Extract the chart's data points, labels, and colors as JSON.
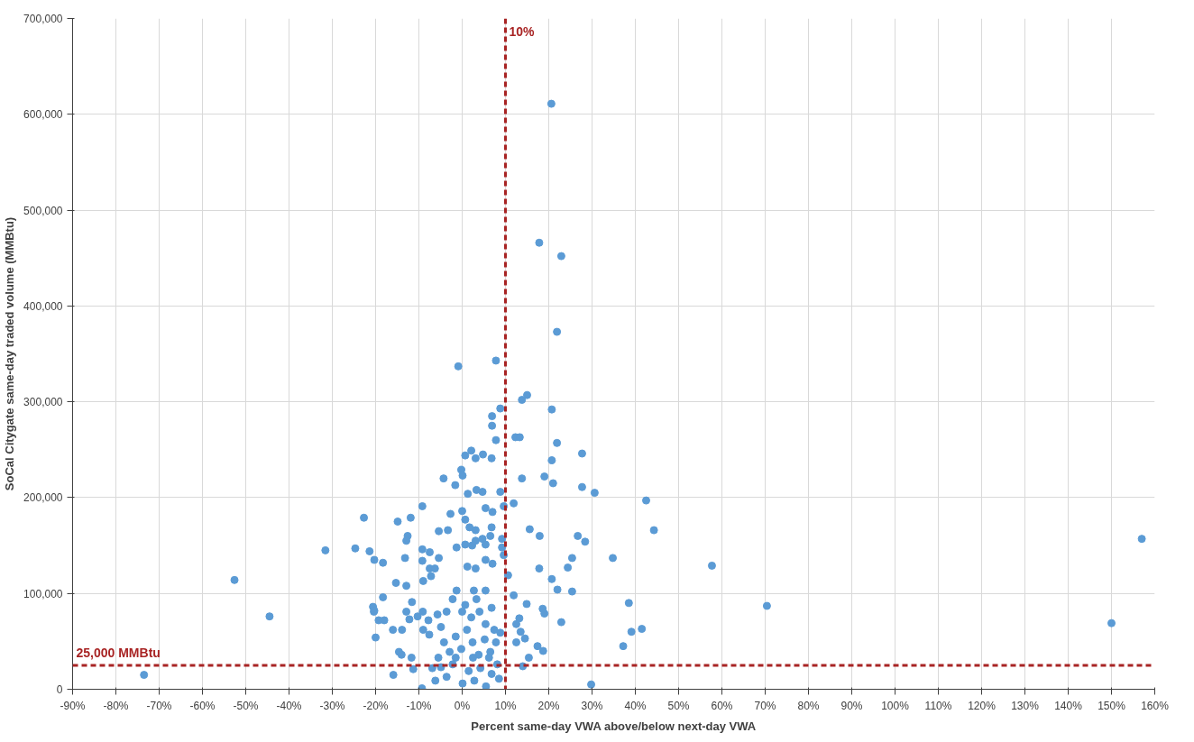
{
  "chart_data": {
    "type": "scatter",
    "xlabel": "Percent same-day VWA above/below next-day VWA",
    "ylabel": "SoCal Citygate same-day traded volume (MMBtu)",
    "xlim": [
      -90,
      160
    ],
    "xticks": [
      {
        "value": -90,
        "label": "-90%"
      },
      {
        "value": -80,
        "label": "-80%"
      },
      {
        "value": -70,
        "label": "-70%"
      },
      {
        "value": -60,
        "label": "-60%"
      },
      {
        "value": -50,
        "label": "-50%"
      },
      {
        "value": -40,
        "label": "-40%"
      },
      {
        "value": -30,
        "label": "-30%"
      },
      {
        "value": -20,
        "label": "-20%"
      },
      {
        "value": -10,
        "label": "-10%"
      },
      {
        "value": 0,
        "label": "0%"
      },
      {
        "value": 10,
        "label": "10%"
      },
      {
        "value": 20,
        "label": "20%"
      },
      {
        "value": 30,
        "label": "30%"
      },
      {
        "value": 40,
        "label": "40%"
      },
      {
        "value": 50,
        "label": "50%"
      },
      {
        "value": 60,
        "label": "60%"
      },
      {
        "value": 70,
        "label": "70%"
      },
      {
        "value": 80,
        "label": "80%"
      },
      {
        "value": 90,
        "label": "90%"
      },
      {
        "value": 100,
        "label": "100%"
      },
      {
        "value": 110,
        "label": "110%"
      },
      {
        "value": 120,
        "label": "120%"
      },
      {
        "value": 130,
        "label": "130%"
      },
      {
        "value": 140,
        "label": "140%"
      },
      {
        "value": 150,
        "label": "150%"
      },
      {
        "value": 160,
        "label": "160%"
      }
    ],
    "ylim": [
      0,
      700000
    ],
    "yticks": [
      0,
      {
        "value": 100000,
        "label": "100,000"
      },
      {
        "value": 200000,
        "label": "200,000"
      },
      {
        "value": 300000,
        "label": "300,000"
      },
      {
        "value": 400000,
        "label": "400,000"
      },
      {
        "value": 500000,
        "label": "500,000"
      },
      {
        "value": 600000,
        "label": "600,000"
      },
      {
        "value": 700000,
        "label": "700,000"
      }
    ],
    "grid": true,
    "marker": "circle",
    "ref_lines": [
      {
        "axis": "x",
        "value": 10,
        "label": "10%",
        "color": "#a82424",
        "line_style": "dashed"
      },
      {
        "axis": "y",
        "value": 25000,
        "label": "25,000 MMBtu",
        "color": "#a82424",
        "line_style": "dashed"
      }
    ],
    "series": [
      {
        "color": "#5b9bd5",
        "x": [
          -73.5,
          -52.6,
          -44.5,
          -31.6,
          -24.7,
          -22.7,
          20.6,
          17.8,
          22.9,
          21.9,
          -0.9,
          7.8,
          13.8,
          15.0,
          20.7,
          8.8,
          6.9,
          6.9,
          7.8,
          12.3,
          13.3,
          21.9,
          27.7,
          20.7,
          0.7,
          2.1,
          3.1,
          4.8,
          6.8,
          -0.2,
          0.1,
          -1.6,
          -4.3,
          13.8,
          19.0,
          21.0,
          27.7,
          1.3,
          3.3,
          4.7,
          8.8,
          11.9,
          9.6,
          -9.2,
          0,
          5.4,
          7.0,
          -11.9,
          -14.9,
          -2.7,
          0.7,
          1.7,
          15.6,
          17.9,
          26.7,
          -12.6,
          -12.9,
          -5.4,
          -3.3,
          3.1,
          6.8,
          6.5,
          9.2,
          28.4,
          -21.4,
          -20.3,
          -18.3,
          -9.2,
          -7.5,
          -13.2,
          -1.3,
          0.7,
          2.3,
          3.1,
          4.7,
          5.4,
          9.2,
          9.6,
          25.4,
          24.4,
          -9.2,
          -5.4,
          -7.5,
          1.2,
          3.1,
          5.4,
          7.0,
          10.6,
          17.8,
          20.7,
          -7.2,
          -6.3,
          -9.0,
          -15.3,
          -12.9,
          22.0,
          25.4,
          -1.3,
          2.7,
          5.4,
          11.9,
          -20.6,
          -20.4,
          -18.3,
          -19.3,
          -11.6,
          -12.9,
          -20.3,
          -18.0,
          -16.0,
          -20.0,
          -13.9,
          -12.2,
          -9.1,
          -7.8,
          -5.7,
          13.2,
          14.9,
          18.6,
          19.0,
          22.9,
          12.5,
          13.5,
          12.5,
          14.5,
          17.4,
          18.7,
          15.4,
          14.0,
          8.5,
          -14.6,
          -14.0,
          -11.7,
          -15.9,
          -11.3,
          -9.3,
          -6.9,
          -10.3,
          -9.0,
          -7.6,
          -4.9,
          -3.6,
          -2.2,
          0,
          0.7,
          2.1,
          3.3,
          4.0,
          5.4,
          6.8,
          7.4,
          -4.2,
          -2.9,
          -1.5,
          -0.2,
          1.1,
          2.4,
          3.8,
          5.2,
          6.5,
          7.8,
          8.8,
          -4.9,
          -3.6,
          -2.2,
          0.1,
          1.5,
          2.8,
          4.2,
          5.5,
          6.8,
          8.1,
          -5.5,
          -6.2,
          -1.5,
          2.5,
          6.2,
          29.8,
          30.6,
          34.8,
          37.2,
          38.5,
          39.1,
          41.5,
          42.5,
          44.3,
          57.7,
          70.4,
          150,
          157
        ],
        "values": [
          15000,
          114000,
          76000,
          145000,
          147000,
          179000,
          611000,
          466000,
          452000,
          373000,
          337000,
          343000,
          302000,
          307000,
          292000,
          293000,
          285000,
          275000,
          260000,
          263000,
          263000,
          257000,
          246000,
          239000,
          244000,
          249000,
          241000,
          245000,
          241000,
          229000,
          223000,
          213000,
          220000,
          220000,
          222000,
          215000,
          211000,
          204000,
          208000,
          206000,
          206000,
          194000,
          191000,
          191000,
          186000,
          189000,
          185000,
          179000,
          175000,
          183000,
          177000,
          169000,
          167000,
          160000,
          160000,
          160000,
          155000,
          165000,
          166000,
          166000,
          169000,
          160000,
          157000,
          154000,
          144000,
          135000,
          132000,
          146000,
          143000,
          137000,
          148000,
          151000,
          150000,
          155000,
          157000,
          151000,
          148000,
          140000,
          137000,
          127000,
          134000,
          137000,
          126000,
          128000,
          126000,
          135000,
          131000,
          119000,
          126000,
          115000,
          118000,
          126000,
          113000,
          111000,
          108000,
          104000,
          102000,
          103000,
          103000,
          103000,
          98000,
          86000,
          81000,
          96000,
          72000,
          91000,
          81000,
          82000,
          72000,
          62000,
          54000,
          62000,
          73000,
          81000,
          72000,
          78000,
          74000,
          89000,
          84000,
          79000,
          70000,
          68000,
          60000,
          49000,
          53000,
          45000,
          40000,
          33000,
          24000,
          11000,
          39000,
          36000,
          33000,
          15000,
          21000,
          1000,
          22000,
          76000,
          62000,
          57000,
          65000,
          81000,
          94000,
          81000,
          88000,
          75000,
          94000,
          81000,
          68000,
          85000,
          62000,
          49000,
          39000,
          55000,
          42000,
          62000,
          49000,
          36000,
          52000,
          39000,
          49000,
          59000,
          23000,
          13000,
          26000,
          6000,
          19000,
          9000,
          22000,
          3000,
          16000,
          26000,
          33000,
          9000,
          33000,
          33000,
          33000,
          5000,
          205000,
          137000,
          45000,
          90000,
          60000,
          63000,
          197000,
          166000,
          129000,
          87000,
          69000,
          157000
        ]
      }
    ]
  }
}
